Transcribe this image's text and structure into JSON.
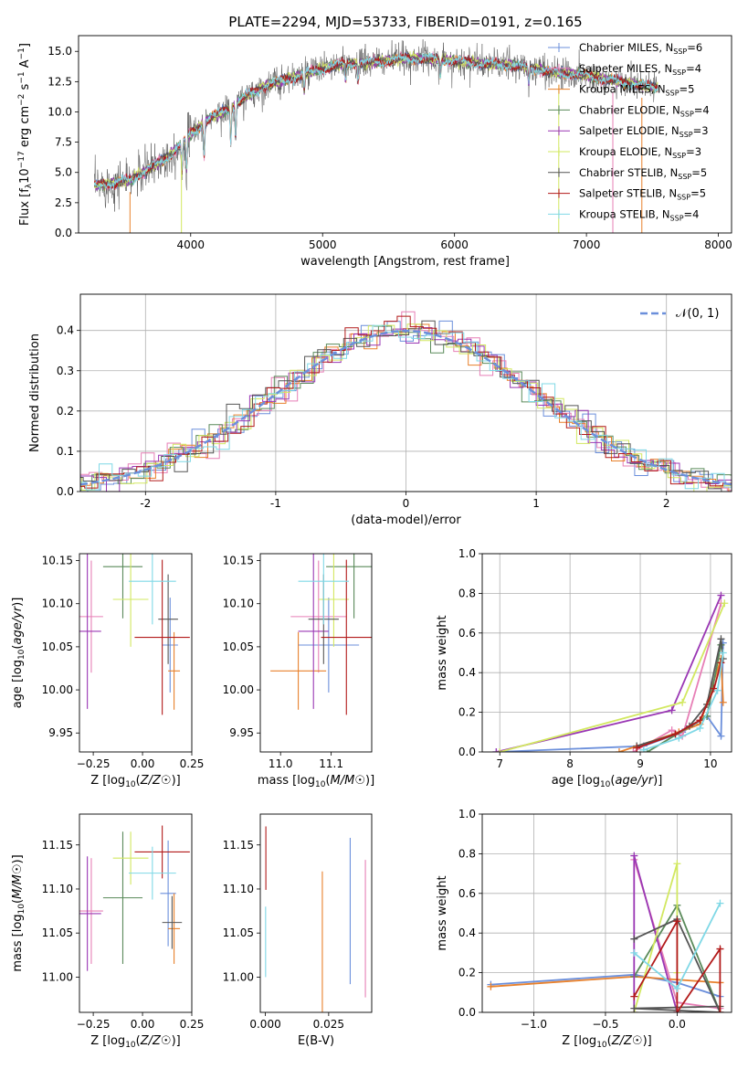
{
  "figure": {
    "title": "PLATE=2294, MJD=53733, FIBERID=0191, z=0.165"
  },
  "colors": {
    "Chabrier MILES": "#6b8fdb",
    "Salpeter MILES": "#e77fb6",
    "Kroupa MILES": "#e8802b",
    "Chabrier ELODIE": "#5a8a5a",
    "Salpeter ELODIE": "#9a37b4",
    "Kroupa ELODIE": "#d2e860",
    "Chabrier STELIB": "#555555",
    "Salpeter STELIB": "#b21a1a",
    "Kroupa STELIB": "#7fd8e6",
    "gauss": "#6b8fdb"
  },
  "chart_data": [
    {
      "id": "spectrum",
      "type": "line",
      "title": "PLATE=2294, MJD=53733, FIBERID=0191, z=0.165",
      "xlabel": "wavelength [Angstrom, rest frame]",
      "ylabel": "Flux [f_λ 10^-17 erg cm^-2 s^-1 A^-1]",
      "xlim": [
        3150,
        8100
      ],
      "ylim": [
        0,
        16.3
      ],
      "xticks": [
        4000,
        5000,
        6000,
        7000,
        8000
      ],
      "yticks": [
        0.0,
        2.5,
        5.0,
        7.5,
        10.0,
        12.5,
        15.0
      ],
      "xrange_data": [
        3270,
        7540
      ],
      "continuum": {
        "x": [
          3270,
          3400,
          3550,
          3700,
          3850,
          3950,
          4050,
          4150,
          4300,
          4450,
          4600,
          4800,
          5000,
          5200,
          5400,
          5600,
          5800,
          6000,
          6200,
          6400,
          6600,
          6800,
          7000,
          7200,
          7400,
          7540
        ],
        "y": [
          3.9,
          4.1,
          4.4,
          5.4,
          6.5,
          7.7,
          8.6,
          9.5,
          10.3,
          11.5,
          12.3,
          12.9,
          13.6,
          14.0,
          14.1,
          14.4,
          14.4,
          14.2,
          14.0,
          13.9,
          13.6,
          13.2,
          13.0,
          12.6,
          12.2,
          12.0
        ]
      },
      "series": [
        {
          "name": "Chabrier MILES, N_SSP=6",
          "label": "Chabrier MILES, N",
          "nssp": "6"
        },
        {
          "name": "Salpeter MILES, N_SSP=4",
          "label": "Salpeter MILES, N",
          "nssp": "4"
        },
        {
          "name": "Kroupa MILES, N_SSP=5",
          "label": "Kroupa MILES, N",
          "nssp": "5"
        },
        {
          "name": "Chabrier ELODIE, N_SSP=4",
          "label": "Chabrier ELODIE, N",
          "nssp": "4"
        },
        {
          "name": "Salpeter ELODIE, N_SSP=3",
          "label": "Salpeter ELODIE, N",
          "nssp": "3"
        },
        {
          "name": "Kroupa ELODIE, N_SSP=3",
          "label": "Kroupa ELODIE, N",
          "nssp": "3"
        },
        {
          "name": "Chabrier STELIB, N_SSP=5",
          "label": "Chabrier STELIB, N",
          "nssp": "5"
        },
        {
          "name": "Salpeter STELIB, N_SSP=5",
          "label": "Salpeter STELIB, N",
          "nssp": "5"
        },
        {
          "name": "Kroupa STELIB, N_SSP=4",
          "label": "Kroupa STELIB, N",
          "nssp": "4"
        }
      ],
      "subscript": "SSP"
    },
    {
      "id": "residuals",
      "type": "histogram",
      "xlabel": "(data-model)/error",
      "ylabel": "Normed distribution",
      "xlim": [
        -2.5,
        2.5
      ],
      "ylim": [
        0,
        0.49
      ],
      "xticks": [
        -2,
        -1,
        0,
        1,
        2
      ],
      "yticks": [
        0.0,
        0.1,
        0.2,
        0.3,
        0.4
      ],
      "grid": true,
      "bin_width": 0.1,
      "gauss_label": "𝒩(0, 1)",
      "legend": "top-right"
    },
    {
      "id": "age-vs-Z",
      "type": "errorbar",
      "xlabel": "Z [log10(Z/Z☉)]",
      "ylabel": "age  [log10(age/yr)]",
      "xlim": [
        -0.32,
        0.25
      ],
      "ylim": [
        9.928,
        10.158
      ],
      "xticks": [
        -0.25,
        0.0,
        0.25
      ],
      "xticklabels": [
        "−0.25",
        "0.00",
        "0.25"
      ],
      "yticks": [
        9.95,
        10.0,
        10.05,
        10.1,
        10.15
      ],
      "points": [
        {
          "s": "Chabrier MILES",
          "x": 0.14,
          "xe": 0.04,
          "y": 10.052,
          "ye": 0.055
        },
        {
          "s": "Salpeter MILES",
          "x": -0.26,
          "xe": 0.06,
          "y": 10.085,
          "ye": 0.065
        },
        {
          "s": "Kroupa MILES",
          "x": 0.16,
          "xe": 0.03,
          "y": 10.022,
          "ye": 0.045
        },
        {
          "s": "Chabrier ELODIE",
          "x": -0.1,
          "xe": 0.1,
          "y": 10.143,
          "ye": 0.06
        },
        {
          "s": "Salpeter ELODIE",
          "x": -0.28,
          "xe": 0.07,
          "y": 10.068,
          "ye": 0.09
        },
        {
          "s": "Kroupa ELODIE",
          "x": -0.06,
          "xe": 0.09,
          "y": 10.105,
          "ye": 0.055
        },
        {
          "s": "Chabrier STELIB",
          "x": 0.13,
          "xe": 0.05,
          "y": 10.082,
          "ye": 0.052
        },
        {
          "s": "Salpeter STELIB",
          "x": 0.1,
          "xe": 0.14,
          "y": 10.061,
          "ye": 0.09
        },
        {
          "s": "Kroupa STELIB",
          "x": 0.05,
          "xe": 0.12,
          "y": 10.126,
          "ye": 0.05
        }
      ]
    },
    {
      "id": "age-vs-mass",
      "type": "errorbar",
      "xlabel": "mass [log10(M/M☉)]",
      "xlim": [
        10.96,
        11.18
      ],
      "ylim": [
        9.928,
        10.158
      ],
      "xticks": [
        11.0,
        11.1
      ],
      "xticklabels": [
        "11.0",
        "11.1"
      ],
      "yticks": [
        9.95,
        10.0,
        10.05,
        10.1,
        10.15
      ],
      "points": [
        {
          "s": "Chabrier MILES",
          "x": 11.095,
          "xe": 0.06,
          "y": 10.052,
          "ye": 0.055
        },
        {
          "s": "Salpeter MILES",
          "x": 11.075,
          "xe": 0.055,
          "y": 10.085,
          "ye": 0.065
        },
        {
          "s": "Kroupa MILES",
          "x": 11.035,
          "xe": 0.055,
          "y": 10.022,
          "ye": 0.045
        },
        {
          "s": "Chabrier ELODIE",
          "x": 11.145,
          "xe": 0.055,
          "y": 10.143,
          "ye": 0.06
        },
        {
          "s": "Salpeter ELODIE",
          "x": 11.065,
          "xe": 0.03,
          "y": 10.068,
          "ye": 0.09
        },
        {
          "s": "Kroupa ELODIE",
          "x": 11.105,
          "xe": 0.03,
          "y": 10.105,
          "ye": 0.055
        },
        {
          "s": "Chabrier STELIB",
          "x": 11.085,
          "xe": 0.03,
          "y": 10.082,
          "ye": 0.052
        },
        {
          "s": "Salpeter STELIB",
          "x": 11.13,
          "xe": 0.05,
          "y": 10.061,
          "ye": 0.09
        },
        {
          "s": "Kroupa STELIB",
          "x": 11.085,
          "xe": 0.05,
          "y": 10.126,
          "ye": 0.05
        }
      ]
    },
    {
      "id": "weight-vs-age",
      "type": "line",
      "xlabel": "age  [log10(age/yr)]",
      "ylabel": "mass weight",
      "xlim": [
        6.75,
        10.3
      ],
      "ylim": [
        0,
        1.0
      ],
      "xticks": [
        7,
        8,
        9,
        10
      ],
      "yticks": [
        0.0,
        0.2,
        0.4,
        0.6,
        0.8,
        1.0
      ],
      "grid": true,
      "series": [
        {
          "s": "Chabrier MILES",
          "x": [
            6.95,
            9.05,
            9.6,
            9.95,
            10.15,
            10.18
          ],
          "y": [
            0.0,
            0.03,
            0.1,
            0.18,
            0.08,
            0.55
          ]
        },
        {
          "s": "Salpeter MILES",
          "x": [
            8.9,
            9.45,
            9.6,
            10.15
          ],
          "y": [
            0.0,
            0.11,
            0.08,
            0.75
          ]
        },
        {
          "s": "Kroupa MILES",
          "x": [
            8.7,
            9.55,
            9.85,
            10.15,
            10.18
          ],
          "y": [
            0.0,
            0.1,
            0.14,
            0.47,
            0.25
          ]
        },
        {
          "s": "Chabrier ELODIE",
          "x": [
            9.1,
            9.95,
            10.15
          ],
          "y": [
            0.0,
            0.18,
            0.54
          ]
        },
        {
          "s": "Salpeter ELODIE",
          "x": [
            6.95,
            9.45,
            10.15
          ],
          "y": [
            0.0,
            0.21,
            0.79
          ]
        },
        {
          "s": "Kroupa ELODIE",
          "x": [
            7.0,
            9.6,
            10.2
          ],
          "y": [
            0.0,
            0.25,
            0.75
          ]
        },
        {
          "s": "Chabrier STELIB",
          "x": [
            8.95,
            9.5,
            9.7,
            9.95,
            10.15,
            10.18
          ],
          "y": [
            0.03,
            0.09,
            0.13,
            0.24,
            0.57,
            0.47
          ]
        },
        {
          "s": "Salpeter STELIB",
          "x": [
            8.95,
            9.5,
            9.85,
            10.05,
            10.15
          ],
          "y": [
            0.02,
            0.09,
            0.16,
            0.32,
            0.45
          ]
        },
        {
          "s": "Kroupa STELIB",
          "x": [
            9.05,
            9.55,
            9.85,
            10.1,
            10.18
          ],
          "y": [
            0.01,
            0.07,
            0.12,
            0.31,
            0.5
          ]
        }
      ]
    },
    {
      "id": "mass-vs-Z",
      "type": "errorbar",
      "xlabel": "Z [log10(Z/Z☉)]",
      "ylabel": "mass [log10(M/M☉)]",
      "xlim": [
        -0.32,
        0.25
      ],
      "ylim": [
        10.96,
        11.185
      ],
      "xticks": [
        -0.25,
        0.0,
        0.25
      ],
      "xticklabels": [
        "−0.25",
        "0.00",
        "0.25"
      ],
      "yticks": [
        11.0,
        11.05,
        11.1,
        11.15
      ],
      "points": [
        {
          "s": "Chabrier MILES",
          "x": 0.13,
          "xe": 0.04,
          "y": 11.095,
          "ye": 0.06
        },
        {
          "s": "Salpeter MILES",
          "x": -0.26,
          "xe": 0.06,
          "y": 11.075,
          "ye": 0.06
        },
        {
          "s": "Kroupa MILES",
          "x": 0.16,
          "xe": 0.03,
          "y": 11.055,
          "ye": 0.04
        },
        {
          "s": "Chabrier ELODIE",
          "x": -0.1,
          "xe": 0.1,
          "y": 11.09,
          "ye": 0.075
        },
        {
          "s": "Salpeter ELODIE",
          "x": -0.28,
          "xe": 0.07,
          "y": 11.072,
          "ye": 0.065
        },
        {
          "s": "Kroupa ELODIE",
          "x": -0.06,
          "xe": 0.09,
          "y": 11.135,
          "ye": 0.03
        },
        {
          "s": "Chabrier STELIB",
          "x": 0.15,
          "xe": 0.05,
          "y": 11.062,
          "ye": 0.03
        },
        {
          "s": "Salpeter STELIB",
          "x": 0.1,
          "xe": 0.14,
          "y": 11.142,
          "ye": 0.03
        },
        {
          "s": "Kroupa STELIB",
          "x": 0.05,
          "xe": 0.12,
          "y": 11.118,
          "ye": 0.03
        }
      ]
    },
    {
      "id": "mass-vs-ebv",
      "type": "errorbar",
      "xlabel": "E(B-V)",
      "xlim": [
        -0.002,
        0.042
      ],
      "ylim": [
        10.96,
        11.185
      ],
      "xticks": [
        0.0,
        0.025
      ],
      "xticklabels": [
        "0.000",
        "0.025"
      ],
      "yticks": [
        11.0,
        11.05,
        11.1,
        11.15
      ],
      "points": [
        {
          "s": "Chabrier MILES",
          "x": 0.0335,
          "xe": 0.0,
          "y": 11.075,
          "ye": 0.083
        },
        {
          "s": "Salpeter MILES",
          "x": 0.0395,
          "xe": 0.0,
          "y": 11.055,
          "ye": 0.078
        },
        {
          "s": "Kroupa MILES",
          "x": 0.0225,
          "xe": 0.0,
          "y": 11.02,
          "ye": 0.1
        },
        {
          "s": "Salpeter STELIB",
          "x": 0.0002,
          "xe": 0.0,
          "y": 11.135,
          "ye": 0.036
        },
        {
          "s": "Kroupa STELIB",
          "x": 0.0001,
          "xe": 0.0,
          "y": 11.04,
          "ye": 0.04
        }
      ]
    },
    {
      "id": "weight-vs-Z",
      "type": "line",
      "xlabel": "Z [log10(Z/Z☉)]",
      "ylabel": "mass weight",
      "xlim": [
        -1.36,
        0.38
      ],
      "ylim": [
        0,
        1.0
      ],
      "xticks": [
        -1.0,
        -0.5,
        0.0
      ],
      "xticklabels": [
        "−1.0",
        "−0.5",
        "0.0"
      ],
      "yticks": [
        0.0,
        0.2,
        0.4,
        0.6,
        0.8,
        1.0
      ],
      "grid": true,
      "series": [
        {
          "s": "Chabrier MILES",
          "x": [
            -1.3,
            -0.3,
            0.0,
            0.3
          ],
          "y": [
            0.14,
            0.19,
            0.15,
            0.08
          ]
        },
        {
          "s": "Salpeter MILES",
          "x": [
            -0.3,
            0.0,
            0.3
          ],
          "y": [
            0.77,
            0.05,
            0.02
          ]
        },
        {
          "s": "Kroupa MILES",
          "x": [
            -1.3,
            -0.3,
            0.3
          ],
          "y": [
            0.13,
            0.18,
            0.15
          ]
        },
        {
          "s": "Chabrier ELODIE",
          "x": [
            -0.3,
            0.0,
            0.3
          ],
          "y": [
            0.18,
            0.54,
            0.0
          ]
        },
        {
          "s": "Salpeter ELODIE",
          "x": [
            -0.3,
            -0.3,
            0.0
          ],
          "y": [
            0.0,
            0.79,
            0.0
          ]
        },
        {
          "s": "Kroupa ELODIE",
          "x": [
            -0.3,
            0.0,
            0.0
          ],
          "y": [
            0.0,
            0.75,
            0.2
          ]
        },
        {
          "s": "Chabrier STELIB",
          "x": [
            -0.3,
            0.0,
            0.3,
            -0.3,
            0.3
          ],
          "y": [
            0.37,
            0.47,
            0.0,
            0.02,
            0.03
          ]
        },
        {
          "s": "Salpeter STELIB",
          "x": [
            -0.3,
            0.0,
            0.0,
            0.3,
            0.3
          ],
          "y": [
            0.08,
            0.46,
            0.0,
            0.32,
            0.0
          ]
        },
        {
          "s": "Kroupa STELIB",
          "x": [
            -0.3,
            0.0,
            0.3
          ],
          "y": [
            0.3,
            0.12,
            0.55
          ]
        }
      ]
    }
  ]
}
